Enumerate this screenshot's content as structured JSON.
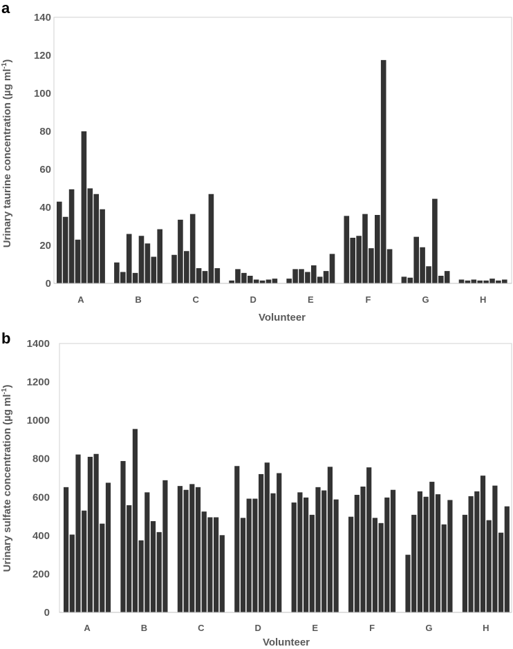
{
  "chart_data": [
    {
      "panel": "a",
      "type": "bar",
      "title": "",
      "xlabel": "Volunteer",
      "ylabel": {
        "main": "Urinary taurine concentration (µg ml",
        "sup": "-1",
        "end": ")"
      },
      "ylim": [
        0,
        140
      ],
      "yticks": [
        0,
        20,
        40,
        60,
        80,
        100,
        120,
        140
      ],
      "categories": [
        "A",
        "B",
        "C",
        "D",
        "E",
        "F",
        "G",
        "H"
      ],
      "groups": [
        [
          43,
          35,
          49.5,
          23,
          80,
          50,
          47,
          39
        ],
        [
          11,
          6,
          26,
          5.5,
          25,
          21,
          14,
          28.5
        ],
        [
          15,
          33.5,
          17,
          36.5,
          8,
          6.5,
          47,
          8
        ],
        [
          1.5,
          7.5,
          5.5,
          4,
          2,
          1.5,
          2,
          2.5
        ],
        [
          2.5,
          7.5,
          7.5,
          6,
          9.5,
          3.5,
          6.5,
          15.5
        ],
        [
          35.5,
          24,
          25,
          36.5,
          18.5,
          36,
          117.5,
          18
        ],
        [
          3.5,
          3,
          24.5,
          19,
          9,
          44.5,
          4,
          6.5
        ],
        [
          2,
          1.5,
          2,
          1.5,
          1.5,
          2.5,
          1.5,
          2
        ]
      ],
      "grid": false,
      "bar_color": "#333333"
    },
    {
      "panel": "b",
      "type": "bar",
      "title": "",
      "xlabel": "Volunteer",
      "ylabel": {
        "main": "Urinary sulfate concentration (µg ml",
        "sup": "-1",
        "end": ")"
      },
      "ylim": [
        0,
        1400
      ],
      "yticks": [
        0,
        200,
        400,
        600,
        800,
        1000,
        1200,
        1400
      ],
      "categories": [
        "A",
        "B",
        "C",
        "D",
        "E",
        "F",
        "G",
        "H"
      ],
      "groups": [
        [
          652,
          405,
          822,
          530,
          810,
          825,
          462,
          675
        ],
        [
          788,
          558,
          955,
          375,
          625,
          475,
          418,
          688
        ],
        [
          658,
          638,
          668,
          652,
          525,
          495,
          495,
          402
        ],
        [
          762,
          492,
          592,
          592,
          720,
          780,
          620,
          725
        ],
        [
          572,
          625,
          598,
          508,
          652,
          635,
          758,
          588
        ],
        [
          498,
          612,
          655,
          755,
          492,
          465,
          598,
          638
        ],
        [
          300,
          508,
          630,
          602,
          680,
          615,
          458,
          585
        ],
        [
          508,
          605,
          630,
          712,
          480,
          660,
          415,
          552
        ]
      ],
      "grid": false,
      "bar_color": "#333333"
    }
  ]
}
